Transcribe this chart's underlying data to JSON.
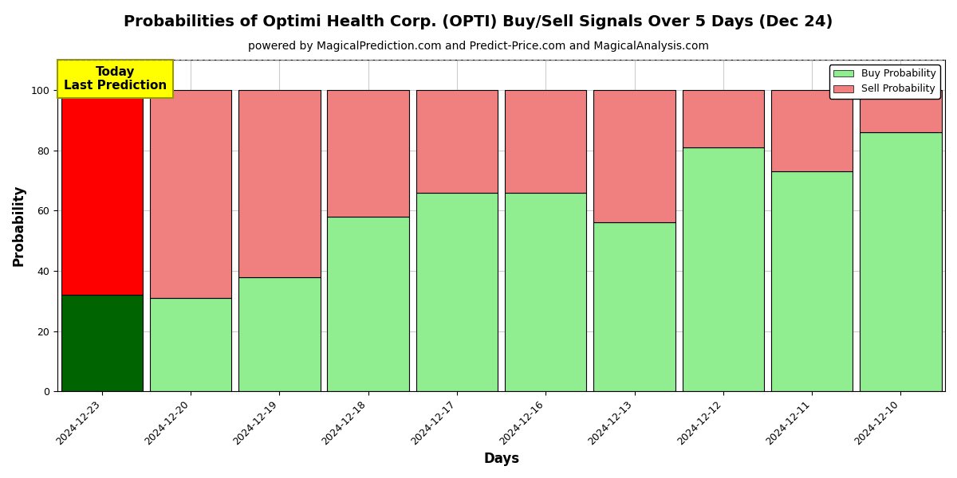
{
  "title": "Probabilities of Optimi Health Corp. (OPTI) Buy/Sell Signals Over 5 Days (Dec 24)",
  "subtitle": "powered by MagicalPrediction.com and Predict-Price.com and MagicalAnalysis.com",
  "xlabel": "Days",
  "ylabel": "Probability",
  "dates": [
    "2024-12-23",
    "2024-12-20",
    "2024-12-19",
    "2024-12-18",
    "2024-12-17",
    "2024-12-16",
    "2024-12-13",
    "2024-12-12",
    "2024-12-11",
    "2024-12-10"
  ],
  "buy_values": [
    32,
    31,
    38,
    58,
    66,
    66,
    56,
    81,
    73,
    86
  ],
  "sell_values": [
    68,
    69,
    62,
    42,
    34,
    34,
    44,
    19,
    27,
    14
  ],
  "today_bar_buy_color": "#006400",
  "today_bar_sell_color": "#FF0000",
  "other_bar_buy_color": "#90EE90",
  "other_bar_sell_color": "#F08080",
  "bar_edgecolor": "black",
  "bar_linewidth": 0.8,
  "annotation_text": "Today\nLast Prediction",
  "annotation_bg_color": "#FFFF00",
  "annotation_border_color": "#999900",
  "legend_buy_color": "#90EE90",
  "legend_sell_color": "#F08080",
  "legend_buy_label": "Buy Probability",
  "legend_sell_label": "Sell Probability",
  "ylim": [
    0,
    110
  ],
  "dashed_line_y": 110,
  "grid_color": "#cccccc",
  "background_color": "#ffffff",
  "title_fontsize": 14,
  "subtitle_fontsize": 10,
  "axis_label_fontsize": 12,
  "tick_fontsize": 9,
  "bar_width": 0.92
}
